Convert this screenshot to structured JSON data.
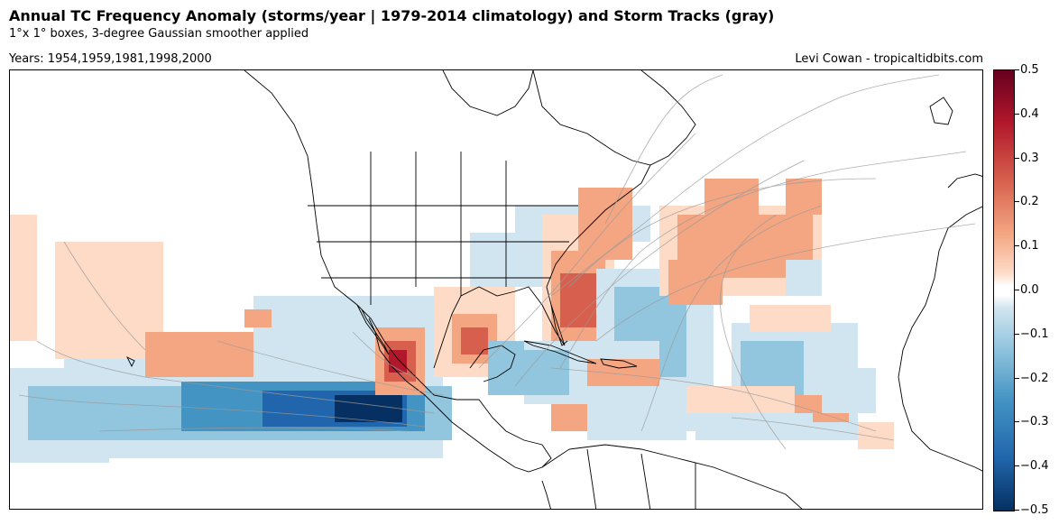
{
  "header": {
    "title": "Annual TC Frequency Anomaly (storms/year | 1979-2014 climatology) and Storm Tracks (gray)",
    "subtitle": "1°x 1° boxes, 3-degree Gaussian smoother applied",
    "years": "Years: 1954,1959,1981,1998,2000",
    "credit": "Levi Cowan - tropicaltidbits.com"
  },
  "colorbar": {
    "ticks": [
      "0.5",
      "0.4",
      "0.3",
      "0.2",
      "0.1",
      "0.0",
      "−0.1",
      "−0.2",
      "−0.3",
      "−0.4",
      "−0.5"
    ],
    "colors": [
      "#67001f",
      "#b2182b",
      "#d6604d",
      "#f4a582",
      "#fddbc7",
      "#ffffff",
      "#d1e5f0",
      "#92c5de",
      "#4393c3",
      "#2166ac",
      "#053061"
    ]
  },
  "map": {
    "land_outline_color": "#000000",
    "track_color": "#9a9a9a",
    "positive_anomaly_color": "#f4a582",
    "negative_anomaly_color": "#92c5de"
  }
}
